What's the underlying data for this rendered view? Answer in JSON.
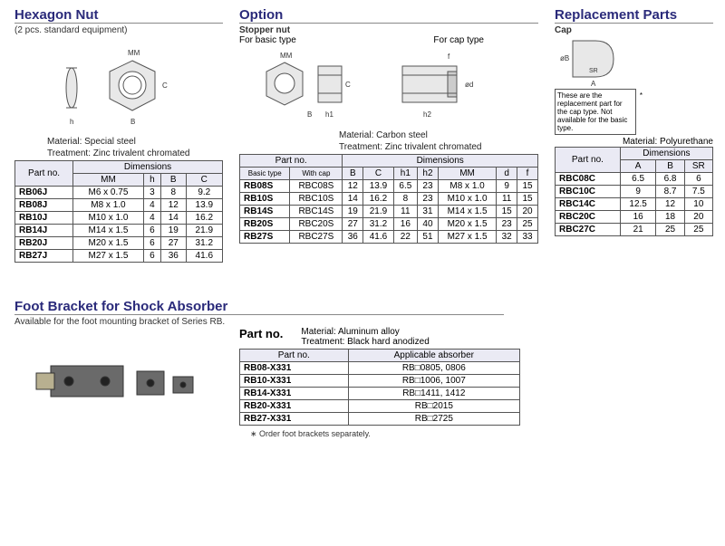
{
  "hex": {
    "title": "Hexagon Nut",
    "subtitle": "(2 pcs. standard equipment)",
    "material": "Material: Special steel",
    "treatment": "Treatment: Zinc trivalent chromated",
    "headers": {
      "part": "Part no.",
      "dim": "Dimensions",
      "mm": "MM",
      "h": "h",
      "b": "B",
      "c": "C"
    },
    "rows": [
      {
        "p": "RB06J",
        "mm": "M6 x 0.75",
        "h": "3",
        "b": "8",
        "c": "9.2"
      },
      {
        "p": "RB08J",
        "mm": "M8 x 1.0",
        "h": "4",
        "b": "12",
        "c": "13.9"
      },
      {
        "p": "RB10J",
        "mm": "M10 x 1.0",
        "h": "4",
        "b": "14",
        "c": "16.2"
      },
      {
        "p": "RB14J",
        "mm": "M14 x 1.5",
        "h": "6",
        "b": "19",
        "c": "21.9"
      },
      {
        "p": "RB20J",
        "mm": "M20 x 1.5",
        "h": "6",
        "b": "27",
        "c": "31.2"
      },
      {
        "p": "RB27J",
        "mm": "M27 x 1.5",
        "h": "6",
        "b": "36",
        "c": "41.6"
      }
    ]
  },
  "option": {
    "title": "Option",
    "stopper": "Stopper nut",
    "basic": "For basic type",
    "cap": "For cap type",
    "material": "Material: Carbon steel",
    "treatment": "Treatment: Zinc trivalent chromated",
    "headers": {
      "part": "Part no.",
      "bt": "Basic type",
      "wc": "With cap",
      "dim": "Dimensions",
      "b": "B",
      "c": "C",
      "h1": "h1",
      "h2": "h2",
      "mm": "MM",
      "d": "d",
      "f": "f"
    },
    "rows": [
      {
        "bt": "RB08S",
        "wc": "RBC08S",
        "b": "12",
        "c": "13.9",
        "h1": "6.5",
        "h2": "23",
        "mm": "M8 x 1.0",
        "d": "9",
        "f": "15"
      },
      {
        "bt": "RB10S",
        "wc": "RBC10S",
        "b": "14",
        "c": "16.2",
        "h1": "8",
        "h2": "23",
        "mm": "M10 x 1.0",
        "d": "11",
        "f": "15"
      },
      {
        "bt": "RB14S",
        "wc": "RBC14S",
        "b": "19",
        "c": "21.9",
        "h1": "11",
        "h2": "31",
        "mm": "M14 x 1.5",
        "d": "15",
        "f": "20"
      },
      {
        "bt": "RB20S",
        "wc": "RBC20S",
        "b": "27",
        "c": "31.2",
        "h1": "16",
        "h2": "40",
        "mm": "M20 x 1.5",
        "d": "23",
        "f": "25"
      },
      {
        "bt": "RB27S",
        "wc": "RBC27S",
        "b": "36",
        "c": "41.6",
        "h1": "22",
        "h2": "51",
        "mm": "M27 x 1.5",
        "d": "32",
        "f": "33"
      }
    ]
  },
  "repl": {
    "title": "Replacement Parts",
    "cap": "Cap",
    "note": "These are the replacement part for the cap type. Not available for the basic type.",
    "material": "Material: Polyurethane",
    "headers": {
      "part": "Part no.",
      "dim": "Dimensions",
      "a": "A",
      "b": "B",
      "sr": "SR"
    },
    "rows": [
      {
        "p": "RBC08C",
        "a": "6.5",
        "b": "6.8",
        "sr": "6"
      },
      {
        "p": "RBC10C",
        "a": "9",
        "b": "8.7",
        "sr": "7.5"
      },
      {
        "p": "RBC14C",
        "a": "12.5",
        "b": "12",
        "sr": "10"
      },
      {
        "p": "RBC20C",
        "a": "16",
        "b": "18",
        "sr": "20"
      },
      {
        "p": "RBC27C",
        "a": "21",
        "b": "25",
        "sr": "25"
      }
    ]
  },
  "foot": {
    "title": "Foot Bracket for Shock Absorber",
    "subtitle": "Available for the foot mounting bracket of Series RB.",
    "partno": "Part no.",
    "material": "Material: Aluminum alloy",
    "treatment": "Treatment: Black hard anodized",
    "headers": {
      "p": "Part no.",
      "a": "Applicable absorber"
    },
    "rows": [
      {
        "p": "RB08-X331",
        "a": "RB□0805, 0806"
      },
      {
        "p": "RB10-X331",
        "a": "RB□1006, 1007"
      },
      {
        "p": "RB14-X331",
        "a": "RB□1411, 1412"
      },
      {
        "p": "RB20-X331",
        "a": "RB□2015"
      },
      {
        "p": "RB27-X331",
        "a": "RB□2725"
      }
    ],
    "footnote": "∗ Order foot brackets separately."
  }
}
